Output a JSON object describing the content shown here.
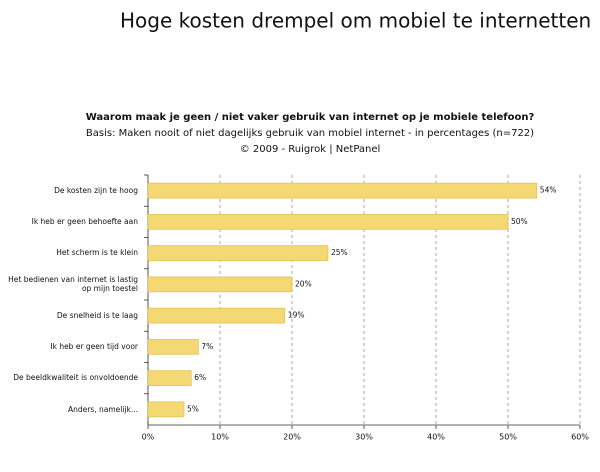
{
  "chart_data": {
    "type": "bar",
    "orientation": "horizontal",
    "title": "Hoge kosten drempel om mobiel te internetten",
    "subtitle": "Waarom maak je geen / niet vaker gebruik van internet op je mobiele telefoon?",
    "subtitle2": "Basis: Maken nooit of niet dagelijks gebruik van mobiel internet - in percentages (n=722)",
    "source": "© 2009 - Ruigrok | NetPanel",
    "categories": [
      "De kosten zijn te hoog",
      "Ik heb er geen behoefte aan",
      "Het scherm is te klein",
      "Het bedienen van internet is lastig op mijn toestel",
      "De snelheid is te laag",
      "Ik heb er geen tijd voor",
      "De beeldkwaliteit is onvoldoende",
      "Anders, namelijk..."
    ],
    "values": [
      54,
      50,
      25,
      20,
      19,
      7,
      6,
      5
    ],
    "value_labels": [
      "54%",
      "50%",
      "25%",
      "20%",
      "19%",
      "7%",
      "6%",
      "5%"
    ],
    "color": "#f4d874",
    "xlim": [
      0,
      60
    ],
    "xticks": [
      {
        "value": 0,
        "label": "0%"
      },
      {
        "value": 10,
        "label": "10%"
      },
      {
        "value": 20,
        "label": "20%"
      },
      {
        "value": 30,
        "label": "30%"
      },
      {
        "value": 40,
        "label": "40%"
      },
      {
        "value": 50,
        "label": "50%"
      },
      {
        "value": 60,
        "label": "60%"
      }
    ],
    "grid": true
  }
}
